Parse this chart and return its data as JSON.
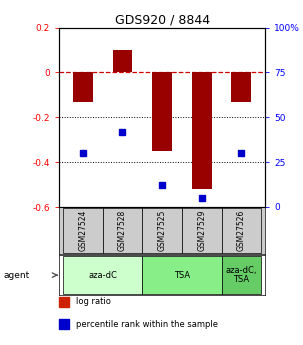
{
  "title": "GDS920 / 8844",
  "samples": [
    "GSM27524",
    "GSM27528",
    "GSM27525",
    "GSM27529",
    "GSM27526"
  ],
  "log_ratios": [
    -0.13,
    0.1,
    -0.35,
    -0.52,
    -0.13
  ],
  "percentile_ranks": [
    30,
    42,
    12,
    5,
    30
  ],
  "groups": [
    {
      "label": "aza-dC",
      "color": "#ccffcc",
      "span": [
        0,
        2
      ]
    },
    {
      "label": "TSA",
      "color": "#88ee88",
      "span": [
        2,
        4
      ]
    },
    {
      "label": "aza-dC,\nTSA",
      "color": "#66cc66",
      "span": [
        4,
        5
      ]
    }
  ],
  "ylim_left": [
    -0.6,
    0.2
  ],
  "ylim_right": [
    0,
    100
  ],
  "bar_color": "#990000",
  "dot_color": "#0000cc",
  "zero_line_color": "#cc0000",
  "grid_color": "#000000",
  "agent_label": "agent",
  "legend_items": [
    {
      "color": "#cc2200",
      "label": "log ratio"
    },
    {
      "color": "#0000cc",
      "label": "percentile rank within the sample"
    }
  ],
  "sample_box_color": "#cccccc",
  "bar_width": 0.5,
  "left_yticks": [
    -0.6,
    -0.4,
    -0.2,
    0.0,
    0.2
  ],
  "left_yticklabels": [
    "-0.6",
    "-0.4",
    "-0.2",
    "0",
    "0.2"
  ],
  "right_yticks": [
    0,
    25,
    50,
    75,
    100
  ],
  "right_yticklabels": [
    "0",
    "25",
    "50",
    "75",
    "100%"
  ]
}
